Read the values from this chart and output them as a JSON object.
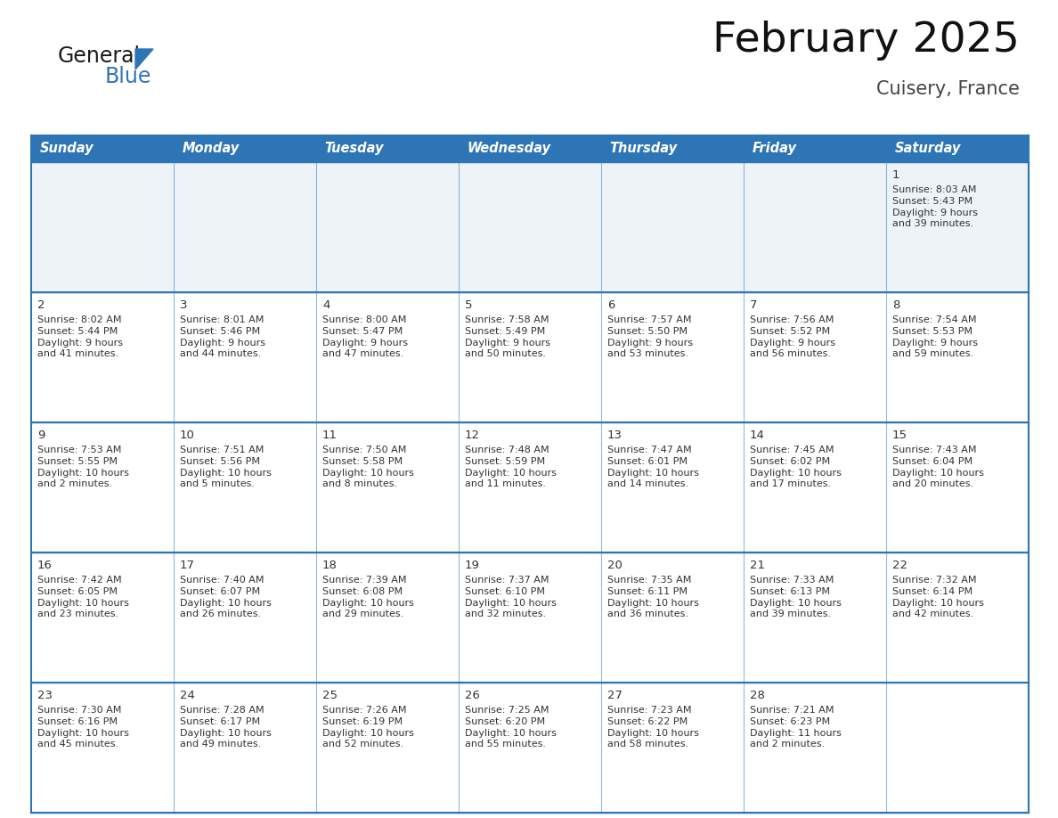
{
  "title": "February 2025",
  "subtitle": "Cuisery, France",
  "header_color": "#2E75B6",
  "header_text_color": "#FFFFFF",
  "days_of_week": [
    "Sunday",
    "Monday",
    "Tuesday",
    "Wednesday",
    "Thursday",
    "Friday",
    "Saturday"
  ],
  "cell_data": [
    [
      "",
      "",
      "",
      "",
      "",
      "",
      "1\nSunrise: 8:03 AM\nSunset: 5:43 PM\nDaylight: 9 hours\nand 39 minutes."
    ],
    [
      "2\nSunrise: 8:02 AM\nSunset: 5:44 PM\nDaylight: 9 hours\nand 41 minutes.",
      "3\nSunrise: 8:01 AM\nSunset: 5:46 PM\nDaylight: 9 hours\nand 44 minutes.",
      "4\nSunrise: 8:00 AM\nSunset: 5:47 PM\nDaylight: 9 hours\nand 47 minutes.",
      "5\nSunrise: 7:58 AM\nSunset: 5:49 PM\nDaylight: 9 hours\nand 50 minutes.",
      "6\nSunrise: 7:57 AM\nSunset: 5:50 PM\nDaylight: 9 hours\nand 53 minutes.",
      "7\nSunrise: 7:56 AM\nSunset: 5:52 PM\nDaylight: 9 hours\nand 56 minutes.",
      "8\nSunrise: 7:54 AM\nSunset: 5:53 PM\nDaylight: 9 hours\nand 59 minutes."
    ],
    [
      "9\nSunrise: 7:53 AM\nSunset: 5:55 PM\nDaylight: 10 hours\nand 2 minutes.",
      "10\nSunrise: 7:51 AM\nSunset: 5:56 PM\nDaylight: 10 hours\nand 5 minutes.",
      "11\nSunrise: 7:50 AM\nSunset: 5:58 PM\nDaylight: 10 hours\nand 8 minutes.",
      "12\nSunrise: 7:48 AM\nSunset: 5:59 PM\nDaylight: 10 hours\nand 11 minutes.",
      "13\nSunrise: 7:47 AM\nSunset: 6:01 PM\nDaylight: 10 hours\nand 14 minutes.",
      "14\nSunrise: 7:45 AM\nSunset: 6:02 PM\nDaylight: 10 hours\nand 17 minutes.",
      "15\nSunrise: 7:43 AM\nSunset: 6:04 PM\nDaylight: 10 hours\nand 20 minutes."
    ],
    [
      "16\nSunrise: 7:42 AM\nSunset: 6:05 PM\nDaylight: 10 hours\nand 23 minutes.",
      "17\nSunrise: 7:40 AM\nSunset: 6:07 PM\nDaylight: 10 hours\nand 26 minutes.",
      "18\nSunrise: 7:39 AM\nSunset: 6:08 PM\nDaylight: 10 hours\nand 29 minutes.",
      "19\nSunrise: 7:37 AM\nSunset: 6:10 PM\nDaylight: 10 hours\nand 32 minutes.",
      "20\nSunrise: 7:35 AM\nSunset: 6:11 PM\nDaylight: 10 hours\nand 36 minutes.",
      "21\nSunrise: 7:33 AM\nSunset: 6:13 PM\nDaylight: 10 hours\nand 39 minutes.",
      "22\nSunrise: 7:32 AM\nSunset: 6:14 PM\nDaylight: 10 hours\nand 42 minutes."
    ],
    [
      "23\nSunrise: 7:30 AM\nSunset: 6:16 PM\nDaylight: 10 hours\nand 45 minutes.",
      "24\nSunrise: 7:28 AM\nSunset: 6:17 PM\nDaylight: 10 hours\nand 49 minutes.",
      "25\nSunrise: 7:26 AM\nSunset: 6:19 PM\nDaylight: 10 hours\nand 52 minutes.",
      "26\nSunrise: 7:25 AM\nSunset: 6:20 PM\nDaylight: 10 hours\nand 55 minutes.",
      "27\nSunrise: 7:23 AM\nSunset: 6:22 PM\nDaylight: 10 hours\nand 58 minutes.",
      "28\nSunrise: 7:21 AM\nSunset: 6:23 PM\nDaylight: 11 hours\nand 2 minutes.",
      ""
    ]
  ],
  "logo_color_general": "#1a1a1a",
  "logo_color_blue": "#2E75B6",
  "logo_triangle_color": "#2E75B6",
  "background_color": "#FFFFFF",
  "cell_line_color": "#2E75B6",
  "cell_text_color": "#333333",
  "cell_number_color": "#333333",
  "row1_bg_color": "#EEF3F8",
  "header_font_size": 10.5,
  "cell_font_size": 8.0,
  "day_num_font_size": 9.5,
  "title_font_size": 34,
  "subtitle_font_size": 15
}
